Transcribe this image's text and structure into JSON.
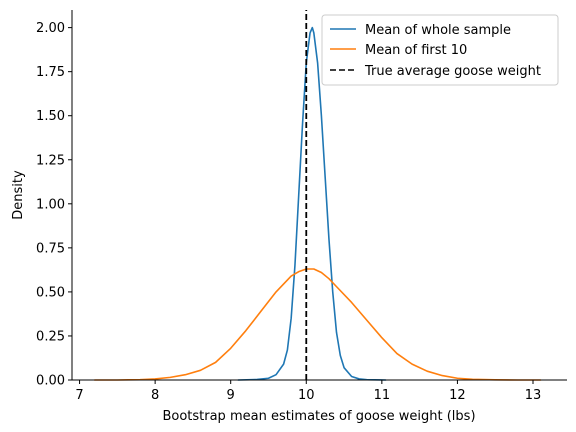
{
  "chart_data": {
    "type": "line",
    "xlabel": "Bootstrap mean estimates of goose weight (lbs)",
    "ylabel": "Density",
    "xlim": [
      6.9,
      13.45
    ],
    "ylim": [
      0,
      2.1
    ],
    "xticks": [
      7,
      8,
      9,
      10,
      11,
      12,
      13
    ],
    "yticks": [
      0.0,
      0.25,
      0.5,
      0.75,
      1.0,
      1.25,
      1.5,
      1.75,
      2.0
    ],
    "ytick_labels": [
      "0.00",
      "0.25",
      "0.50",
      "0.75",
      "1.00",
      "1.25",
      "1.50",
      "1.75",
      "2.00"
    ],
    "legend_position": "top-right",
    "grid": false,
    "series": [
      {
        "name": "Mean of whole sample",
        "color": "#1f77b4",
        "style": "solid",
        "x": [
          9.1,
          9.35,
          9.5,
          9.6,
          9.7,
          9.75,
          9.8,
          9.85,
          9.9,
          9.95,
          10.0,
          10.05,
          10.08,
          10.1,
          10.15,
          10.2,
          10.25,
          10.3,
          10.35,
          10.4,
          10.45,
          10.5,
          10.6,
          10.7,
          10.8,
          11.05
        ],
        "y": [
          0.0,
          0.003,
          0.01,
          0.03,
          0.09,
          0.17,
          0.35,
          0.65,
          1.05,
          1.45,
          1.8,
          1.97,
          2.0,
          1.97,
          1.8,
          1.5,
          1.15,
          0.8,
          0.5,
          0.27,
          0.14,
          0.07,
          0.02,
          0.006,
          0.002,
          0.0
        ]
      },
      {
        "name": "Mean of first 10",
        "color": "#ff7f0e",
        "style": "solid",
        "x": [
          7.2,
          7.5,
          7.8,
          8.0,
          8.2,
          8.4,
          8.6,
          8.8,
          9.0,
          9.2,
          9.4,
          9.6,
          9.8,
          9.9,
          10.0,
          10.1,
          10.2,
          10.3,
          10.4,
          10.6,
          10.8,
          11.0,
          11.2,
          11.4,
          11.6,
          11.8,
          12.0,
          12.2,
          12.5,
          12.8,
          13.1
        ],
        "y": [
          0.0,
          0.0,
          0.002,
          0.006,
          0.015,
          0.03,
          0.055,
          0.1,
          0.18,
          0.28,
          0.39,
          0.5,
          0.59,
          0.615,
          0.63,
          0.63,
          0.61,
          0.575,
          0.53,
          0.44,
          0.34,
          0.24,
          0.15,
          0.09,
          0.05,
          0.025,
          0.01,
          0.004,
          0.001,
          0.0,
          0.0
        ]
      },
      {
        "name": "True average goose weight",
        "color": "#000000",
        "style": "dashed",
        "x": [
          10.0,
          10.0
        ],
        "y": [
          0,
          2.1
        ]
      }
    ]
  }
}
